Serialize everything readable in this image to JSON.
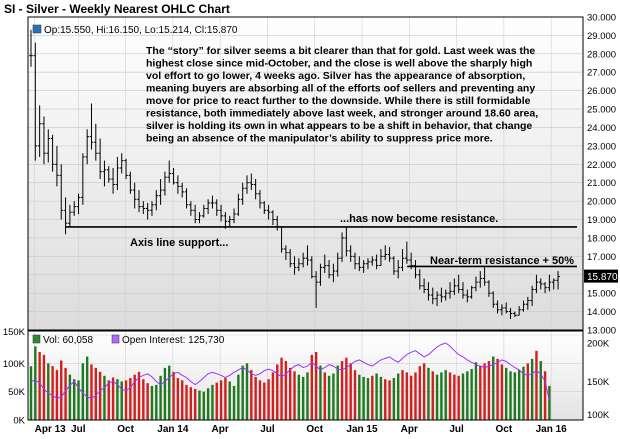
{
  "chart_data": {
    "type": "ohlc",
    "title": "SI - Silver - Weekly Nearest OHLC Chart",
    "ohlc_legend": "Op:15.550, Hi:16.150, Lo:15.214, Cl:15.870",
    "last_price_label": "15.870",
    "price_axis": {
      "ylim": [
        13.0,
        30.0
      ],
      "ticks": [
        "30.000",
        "29.000",
        "28.000",
        "27.000",
        "26.000",
        "25.000",
        "24.000",
        "23.000",
        "22.000",
        "21.000",
        "20.000",
        "19.000",
        "18.000",
        "17.000",
        "16.000",
        "15.000",
        "14.000",
        "13.000"
      ]
    },
    "x_tick_labels": [
      "Apr 13",
      "Jul",
      "Oct",
      "Jan 14",
      "Apr",
      "Jul",
      "Oct",
      "Jan 15",
      "Apr",
      "Jul",
      "Oct",
      "Jan 16"
    ],
    "price_bars": [
      {
        "h": 29.3,
        "l": 27.3,
        "c": 27.9
      },
      {
        "h": 28.6,
        "l": 22.2,
        "c": 23.0
      },
      {
        "h": 25.2,
        "l": 22.4,
        "c": 24.2
      },
      {
        "h": 24.6,
        "l": 22.0,
        "c": 22.6
      },
      {
        "h": 23.9,
        "l": 22.1,
        "c": 23.4
      },
      {
        "h": 23.6,
        "l": 21.6,
        "c": 22.0
      },
      {
        "h": 23.0,
        "l": 20.8,
        "c": 21.4
      },
      {
        "h": 22.0,
        "l": 19.0,
        "c": 19.5
      },
      {
        "h": 20.2,
        "l": 18.2,
        "c": 18.8
      },
      {
        "h": 19.8,
        "l": 18.6,
        "c": 19.4
      },
      {
        "h": 20.0,
        "l": 19.2,
        "c": 19.7
      },
      {
        "h": 20.4,
        "l": 19.3,
        "c": 20.2
      },
      {
        "h": 22.6,
        "l": 19.8,
        "c": 22.4
      },
      {
        "h": 23.9,
        "l": 22.0,
        "c": 23.5
      },
      {
        "h": 25.3,
        "l": 22.8,
        "c": 23.2
      },
      {
        "h": 24.2,
        "l": 22.2,
        "c": 22.6
      },
      {
        "h": 23.4,
        "l": 21.2,
        "c": 21.6
      },
      {
        "h": 22.2,
        "l": 20.8,
        "c": 21.7
      },
      {
        "h": 21.9,
        "l": 21.0,
        "c": 21.2
      },
      {
        "h": 21.8,
        "l": 20.4,
        "c": 20.9
      },
      {
        "h": 22.4,
        "l": 20.6,
        "c": 21.8
      },
      {
        "h": 22.6,
        "l": 21.5,
        "c": 22.2
      },
      {
        "h": 22.3,
        "l": 21.2,
        "c": 21.4
      },
      {
        "h": 21.6,
        "l": 20.4,
        "c": 20.6
      },
      {
        "h": 21.0,
        "l": 19.6,
        "c": 20.1
      },
      {
        "h": 20.6,
        "l": 19.4,
        "c": 19.7
      },
      {
        "h": 20.0,
        "l": 19.3,
        "c": 19.6
      },
      {
        "h": 19.9,
        "l": 19.0,
        "c": 19.5
      },
      {
        "h": 20.0,
        "l": 19.2,
        "c": 19.8
      },
      {
        "h": 20.6,
        "l": 19.5,
        "c": 20.3
      },
      {
        "h": 21.2,
        "l": 19.8,
        "c": 20.6
      },
      {
        "h": 21.6,
        "l": 20.3,
        "c": 21.3
      },
      {
        "h": 22.2,
        "l": 21.0,
        "c": 21.5
      },
      {
        "h": 21.8,
        "l": 20.9,
        "c": 21.0
      },
      {
        "h": 21.4,
        "l": 20.4,
        "c": 20.8
      },
      {
        "h": 21.0,
        "l": 20.2,
        "c": 20.5
      },
      {
        "h": 20.7,
        "l": 19.6,
        "c": 19.8
      },
      {
        "h": 20.0,
        "l": 19.2,
        "c": 19.5
      },
      {
        "h": 19.8,
        "l": 18.8,
        "c": 19.0
      },
      {
        "h": 19.4,
        "l": 18.8,
        "c": 19.2
      },
      {
        "h": 19.8,
        "l": 19.1,
        "c": 19.6
      },
      {
        "h": 20.1,
        "l": 19.3,
        "c": 19.9
      },
      {
        "h": 20.3,
        "l": 19.6,
        "c": 19.9
      },
      {
        "h": 20.1,
        "l": 19.2,
        "c": 19.5
      },
      {
        "h": 19.8,
        "l": 18.9,
        "c": 19.2
      },
      {
        "h": 19.4,
        "l": 18.5,
        "c": 18.9
      },
      {
        "h": 19.2,
        "l": 18.6,
        "c": 19.0
      },
      {
        "h": 19.6,
        "l": 18.8,
        "c": 19.3
      },
      {
        "h": 20.4,
        "l": 19.2,
        "c": 20.1
      },
      {
        "h": 21.0,
        "l": 19.8,
        "c": 20.7
      },
      {
        "h": 21.4,
        "l": 20.4,
        "c": 21.0
      },
      {
        "h": 21.5,
        "l": 20.6,
        "c": 20.9
      },
      {
        "h": 21.2,
        "l": 20.1,
        "c": 20.4
      },
      {
        "h": 20.6,
        "l": 19.6,
        "c": 19.9
      },
      {
        "h": 20.0,
        "l": 19.3,
        "c": 19.5
      },
      {
        "h": 19.8,
        "l": 19.0,
        "c": 19.4
      },
      {
        "h": 19.5,
        "l": 18.7,
        "c": 19.0
      },
      {
        "h": 19.2,
        "l": 18.4,
        "c": 18.6
      },
      {
        "h": 18.6,
        "l": 17.2,
        "c": 17.4
      },
      {
        "h": 17.6,
        "l": 16.8,
        "c": 17.2
      },
      {
        "h": 17.4,
        "l": 16.4,
        "c": 16.6
      },
      {
        "h": 17.0,
        "l": 16.0,
        "c": 16.4
      },
      {
        "h": 16.9,
        "l": 16.2,
        "c": 16.6
      },
      {
        "h": 17.2,
        "l": 16.4,
        "c": 16.9
      },
      {
        "h": 17.6,
        "l": 16.5,
        "c": 16.8
      },
      {
        "h": 17.0,
        "l": 15.8,
        "c": 15.9
      },
      {
        "h": 16.2,
        "l": 14.2,
        "c": 15.6
      },
      {
        "h": 16.6,
        "l": 15.4,
        "c": 16.4
      },
      {
        "h": 17.1,
        "l": 16.1,
        "c": 16.5
      },
      {
        "h": 16.8,
        "l": 15.8,
        "c": 16.0
      },
      {
        "h": 16.6,
        "l": 15.6,
        "c": 16.2
      },
      {
        "h": 17.2,
        "l": 15.9,
        "c": 16.9
      },
      {
        "h": 18.3,
        "l": 16.7,
        "c": 18.0
      },
      {
        "h": 18.6,
        "l": 17.0,
        "c": 17.3
      },
      {
        "h": 17.6,
        "l": 16.7,
        "c": 17.0
      },
      {
        "h": 17.2,
        "l": 16.3,
        "c": 16.6
      },
      {
        "h": 17.0,
        "l": 16.2,
        "c": 16.4
      },
      {
        "h": 16.8,
        "l": 16.1,
        "c": 16.6
      },
      {
        "h": 16.9,
        "l": 16.3,
        "c": 16.7
      },
      {
        "h": 17.0,
        "l": 16.5,
        "c": 16.8
      },
      {
        "h": 17.1,
        "l": 16.3,
        "c": 16.5
      },
      {
        "h": 17.4,
        "l": 16.5,
        "c": 17.0
      },
      {
        "h": 17.6,
        "l": 16.8,
        "c": 17.1
      },
      {
        "h": 17.5,
        "l": 16.7,
        "c": 16.9
      },
      {
        "h": 17.0,
        "l": 16.0,
        "c": 16.2
      },
      {
        "h": 16.8,
        "l": 15.8,
        "c": 16.4
      },
      {
        "h": 17.4,
        "l": 16.2,
        "c": 16.9
      },
      {
        "h": 17.8,
        "l": 16.6,
        "c": 16.8
      },
      {
        "h": 17.2,
        "l": 16.3,
        "c": 16.5
      },
      {
        "h": 16.8,
        "l": 15.8,
        "c": 16.0
      },
      {
        "h": 16.3,
        "l": 15.2,
        "c": 15.4
      },
      {
        "h": 15.8,
        "l": 15.0,
        "c": 15.2
      },
      {
        "h": 15.6,
        "l": 14.6,
        "c": 14.9
      },
      {
        "h": 15.3,
        "l": 14.4,
        "c": 14.7
      },
      {
        "h": 15.1,
        "l": 14.3,
        "c": 14.9
      },
      {
        "h": 15.3,
        "l": 14.5,
        "c": 14.8
      },
      {
        "h": 15.2,
        "l": 14.6,
        "c": 15.0
      },
      {
        "h": 15.6,
        "l": 14.7,
        "c": 15.1
      },
      {
        "h": 15.8,
        "l": 14.9,
        "c": 15.4
      },
      {
        "h": 16.0,
        "l": 15.0,
        "c": 15.2
      },
      {
        "h": 15.6,
        "l": 14.7,
        "c": 14.9
      },
      {
        "h": 15.2,
        "l": 14.5,
        "c": 14.8
      },
      {
        "h": 15.4,
        "l": 14.7,
        "c": 15.3
      },
      {
        "h": 15.9,
        "l": 15.1,
        "c": 15.6
      },
      {
        "h": 16.2,
        "l": 15.3,
        "c": 15.8
      },
      {
        "h": 16.4,
        "l": 15.4,
        "c": 15.6
      },
      {
        "h": 15.7,
        "l": 14.8,
        "c": 15.0
      },
      {
        "h": 15.1,
        "l": 14.2,
        "c": 14.4
      },
      {
        "h": 14.6,
        "l": 13.9,
        "c": 14.1
      },
      {
        "h": 14.4,
        "l": 13.8,
        "c": 14.2
      },
      {
        "h": 14.5,
        "l": 13.9,
        "c": 14.0
      },
      {
        "h": 14.2,
        "l": 13.6,
        "c": 13.9
      },
      {
        "h": 14.0,
        "l": 13.7,
        "c": 13.8
      },
      {
        "h": 14.3,
        "l": 13.8,
        "c": 14.1
      },
      {
        "h": 14.6,
        "l": 14.0,
        "c": 14.4
      },
      {
        "h": 14.8,
        "l": 14.1,
        "c": 14.6
      },
      {
        "h": 15.4,
        "l": 14.3,
        "c": 15.2
      },
      {
        "h": 16.0,
        "l": 15.0,
        "c": 15.6
      },
      {
        "h": 15.8,
        "l": 15.2,
        "c": 15.5
      },
      {
        "h": 15.6,
        "l": 15.0,
        "c": 15.3
      },
      {
        "h": 16.0,
        "l": 15.1,
        "c": 15.6
      },
      {
        "h": 15.8,
        "l": 15.2,
        "c": 15.7
      },
      {
        "h": 16.2,
        "l": 15.2,
        "c": 15.9
      }
    ],
    "reference_lines": [
      {
        "label": "Axis line support...",
        "y": 18.6,
        "x_from_bar": 9,
        "x_to_bar": 120
      },
      {
        "label": "...has now become resistance.",
        "y": 18.6
      },
      {
        "label": "Near-term resistance + 50%",
        "y": 16.45,
        "x_from_bar": 88,
        "x_to_bar": 120
      }
    ],
    "annotation": [
      "The “story” for silver seems a bit clearer than that for gold.  Last week was the",
      "highest close since mid-October, and the close is well above the sharply high",
      "vol effort to go lower, 4 weeks ago.  Silver has the appearance of absorption,",
      "meaning buyers are absorbing all of the efforts oof sellers and preventing any",
      "move for price to react further to the downside.  While there is still formidable",
      "resistance, both immediately above last week, and stronger around 18.60 area,",
      "silver is holding its own in what appears to be a shift in behavior, that change",
      "being an absence of the manipulator’s ability to suppress price more."
    ],
    "volume_panel": {
      "legend_volume": "Vol: 60,058",
      "legend_oi": "Open Interest: 125,730",
      "left_ticks": [
        "150K",
        "100K",
        "50K",
        "0K"
      ],
      "right_ticks": [
        "200K",
        "150K",
        "100K"
      ],
      "vol_ylim": [
        0,
        150000
      ],
      "oi_ylim": [
        100000,
        200000
      ],
      "volume": [
        95000,
        130000,
        120000,
        115000,
        100000,
        95000,
        88000,
        105000,
        92000,
        80000,
        72000,
        70000,
        100000,
        112000,
        98000,
        92000,
        85000,
        78000,
        70000,
        75000,
        72000,
        68000,
        70000,
        74000,
        80000,
        85000,
        72000,
        65000,
        60000,
        62000,
        78000,
        92000,
        96000,
        85000,
        74000,
        70000,
        62000,
        58000,
        55000,
        52000,
        50000,
        56000,
        62000,
        66000,
        70000,
        74000,
        68000,
        60000,
        80000,
        96000,
        100000,
        88000,
        76000,
        70000,
        66000,
        72000,
        84000,
        98000,
        110000,
        104000,
        92000,
        86000,
        80000,
        76000,
        84000,
        115000,
        120000,
        96000,
        84000,
        78000,
        82000,
        96000,
        104000,
        110000,
        100000,
        88000,
        80000,
        76000,
        74000,
        78000,
        82000,
        76000,
        72000,
        70000,
        74000,
        82000,
        88000,
        84000,
        78000,
        84000,
        95000,
        100000,
        92000,
        86000,
        80000,
        84000,
        88000,
        84000,
        80000,
        78000,
        82000,
        86000,
        90000,
        102000,
        96000,
        100000,
        104000,
        112000,
        108000,
        98000,
        92000,
        86000,
        84000,
        88000,
        94000,
        100000,
        108000,
        122000,
        104000,
        86000,
        60058
      ],
      "colors": [
        "g",
        "g",
        "r",
        "r",
        "g",
        "r",
        "r",
        "r",
        "r",
        "g",
        "g",
        "g",
        "g",
        "g",
        "r",
        "r",
        "r",
        "g",
        "r",
        "r",
        "g",
        "g",
        "r",
        "r",
        "r",
        "r",
        "r",
        "r",
        "g",
        "g",
        "g",
        "g",
        "g",
        "r",
        "r",
        "r",
        "r",
        "r",
        "r",
        "g",
        "g",
        "g",
        "g",
        "r",
        "r",
        "r",
        "g",
        "g",
        "g",
        "g",
        "g",
        "r",
        "r",
        "r",
        "r",
        "r",
        "r",
        "r",
        "r",
        "r",
        "r",
        "r",
        "g",
        "g",
        "g",
        "r",
        "r",
        "g",
        "r",
        "g",
        "g",
        "g",
        "r",
        "r",
        "r",
        "r",
        "g",
        "g",
        "g",
        "r",
        "g",
        "g",
        "r",
        "r",
        "g",
        "g",
        "r",
        "r",
        "r",
        "r",
        "r",
        "r",
        "g",
        "r",
        "g",
        "g",
        "g",
        "r",
        "r",
        "r",
        "g",
        "g",
        "g",
        "g",
        "r",
        "r",
        "r",
        "g",
        "r",
        "r",
        "g",
        "g",
        "g",
        "g",
        "g",
        "r",
        "g",
        "r",
        "g",
        "r",
        "g"
      ],
      "open_interest": [
        150000,
        152000,
        148000,
        140000,
        135000,
        132000,
        128000,
        130000,
        138000,
        145000,
        150000,
        142000,
        135000,
        130000,
        128000,
        132000,
        138000,
        142000,
        148000,
        150000,
        146000,
        140000,
        138000,
        142000,
        150000,
        155000,
        158000,
        160000,
        156000,
        150000,
        146000,
        150000,
        155000,
        160000,
        162000,
        158000,
        155000,
        150000,
        146000,
        150000,
        155000,
        160000,
        162000,
        160000,
        158000,
        155000,
        158000,
        162000,
        165000,
        168000,
        165000,
        160000,
        158000,
        160000,
        164000,
        166000,
        164000,
        160000,
        156000,
        160000,
        165000,
        170000,
        172000,
        168000,
        170000,
        175000,
        170000,
        165000,
        168000,
        172000,
        170000,
        166000,
        165000,
        168000,
        172000,
        176000,
        178000,
        175000,
        172000,
        170000,
        174000,
        178000,
        180000,
        182000,
        178000,
        175000,
        180000,
        185000,
        188000,
        190000,
        186000,
        182000,
        185000,
        190000,
        195000,
        198000,
        200000,
        196000,
        190000,
        185000,
        182000,
        178000,
        175000,
        172000,
        170000,
        168000,
        170000,
        172000,
        175000,
        178000,
        176000,
        172000,
        168000,
        165000,
        160000,
        158000,
        160000,
        164000,
        160000,
        150000,
        125730
      ]
    }
  }
}
